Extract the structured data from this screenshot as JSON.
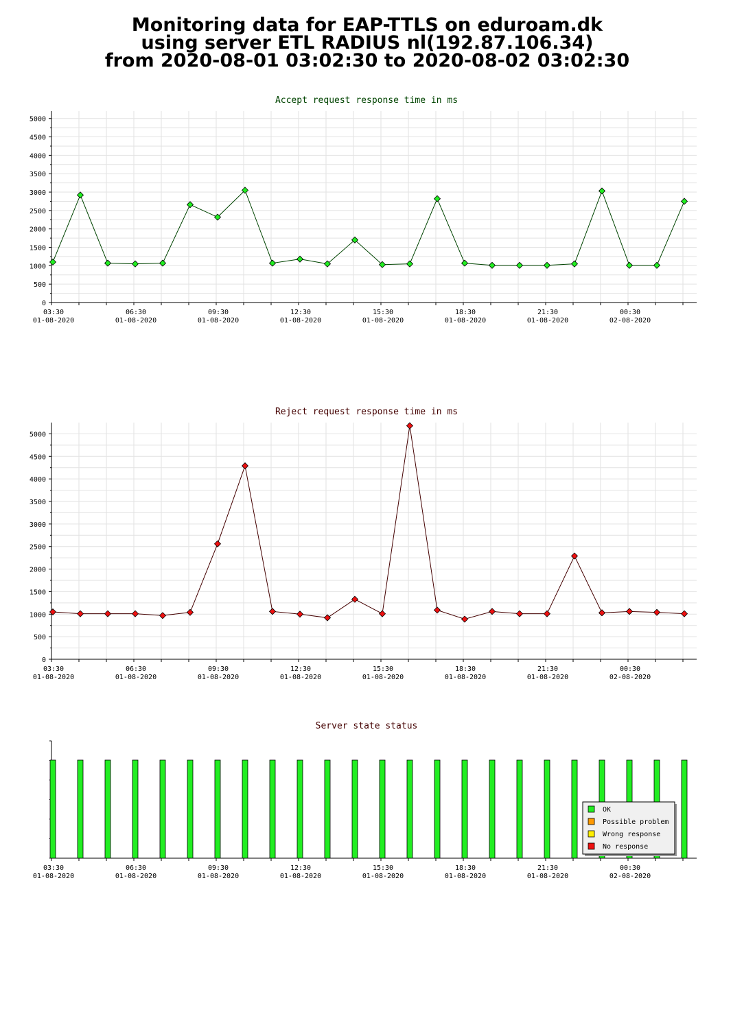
{
  "page": {
    "title_lines": [
      "Monitoring data for EAP-TTLS on eduroam.dk",
      "using server ETL RADIUS nl(192.87.106.34)",
      "from 2020-08-01 03:02:30 to 2020-08-02 03:02:30"
    ]
  },
  "chart_data": [
    {
      "type": "line",
      "title": "Accept request response time in ms",
      "title_color": "#004400",
      "line_color": "#004400",
      "marker_color": "#22ee22",
      "ylim": [
        0,
        5200
      ],
      "yticks": [
        0,
        500,
        1000,
        1500,
        2000,
        2500,
        3000,
        3500,
        4000,
        4500,
        5000
      ],
      "xlim": [
        0,
        23.5
      ],
      "x_tick_labels": [
        [
          "03:30",
          "01-08-2020"
        ],
        [
          "06:30",
          "01-08-2020"
        ],
        [
          "09:30",
          "01-08-2020"
        ],
        [
          "12:30",
          "01-08-2020"
        ],
        [
          "15:30",
          "01-08-2020"
        ],
        [
          "18:30",
          "01-08-2020"
        ],
        [
          "21:30",
          "01-08-2020"
        ],
        [
          "00:30",
          "02-08-2020"
        ]
      ],
      "x": [
        0,
        1,
        2,
        3,
        4,
        5,
        6,
        7,
        8,
        9,
        10,
        11,
        12,
        13,
        14,
        15,
        16,
        17,
        18,
        19,
        20,
        21,
        22,
        23
      ],
      "values": [
        1100,
        2920,
        1070,
        1050,
        1070,
        2660,
        2320,
        3050,
        1070,
        1180,
        1050,
        1700,
        1030,
        1050,
        2820,
        1070,
        1010,
        1010,
        1010,
        1050,
        3030,
        1010,
        1010,
        2750
      ]
    },
    {
      "type": "line",
      "title": "Reject request response time in ms",
      "title_color": "#440000",
      "line_color": "#440000",
      "marker_color": "#ee1111",
      "ylim": [
        0,
        5250
      ],
      "yticks": [
        0,
        500,
        1000,
        1500,
        2000,
        2500,
        3000,
        3500,
        4000,
        4500,
        5000
      ],
      "xlim": [
        0,
        23.5
      ],
      "x_tick_labels": [
        [
          "03:30",
          "01-08-2020"
        ],
        [
          "06:30",
          "01-08-2020"
        ],
        [
          "09:30",
          "01-08-2020"
        ],
        [
          "12:30",
          "01-08-2020"
        ],
        [
          "15:30",
          "01-08-2020"
        ],
        [
          "18:30",
          "01-08-2020"
        ],
        [
          "21:30",
          "01-08-2020"
        ],
        [
          "00:30",
          "02-08-2020"
        ]
      ],
      "x": [
        0,
        1,
        2,
        3,
        4,
        5,
        6,
        7,
        8,
        9,
        10,
        11,
        12,
        13,
        14,
        15,
        16,
        17,
        18,
        19,
        20,
        21,
        22,
        23
      ],
      "values": [
        1050,
        1010,
        1010,
        1010,
        970,
        1040,
        2560,
        4290,
        1060,
        1000,
        920,
        1330,
        1010,
        5180,
        1090,
        890,
        1060,
        1010,
        1010,
        2290,
        1030,
        1060,
        1040,
        1010
      ]
    },
    {
      "type": "bar",
      "title": "Server state status",
      "title_color": "#440000",
      "xlim": [
        0,
        23.5
      ],
      "x_tick_labels": [
        [
          "03:30",
          "01-08-2020"
        ],
        [
          "06:30",
          "01-08-2020"
        ],
        [
          "09:30",
          "01-08-2020"
        ],
        [
          "12:30",
          "01-08-2020"
        ],
        [
          "15:30",
          "01-08-2020"
        ],
        [
          "18:30",
          "01-08-2020"
        ],
        [
          "21:30",
          "01-08-2020"
        ],
        [
          "00:30",
          "02-08-2020"
        ]
      ],
      "x": [
        0,
        1,
        2,
        3,
        4,
        5,
        6,
        7,
        8,
        9,
        10,
        11,
        12,
        13,
        14,
        15,
        16,
        17,
        18,
        19,
        20,
        21,
        22,
        23
      ],
      "states": [
        "OK",
        "OK",
        "OK",
        "OK",
        "OK",
        "OK",
        "OK",
        "OK",
        "OK",
        "OK",
        "OK",
        "OK",
        "OK",
        "OK",
        "OK",
        "OK",
        "OK",
        "OK",
        "OK",
        "OK",
        "OK",
        "OK",
        "OK",
        "OK"
      ],
      "legend_position": "right",
      "legend": [
        {
          "label": "OK",
          "color": "#22ee22"
        },
        {
          "label": "Possible problem",
          "color": "#ff9900"
        },
        {
          "label": "Wrong response",
          "color": "#ffee00"
        },
        {
          "label": "No response",
          "color": "#ee1111"
        }
      ]
    }
  ]
}
